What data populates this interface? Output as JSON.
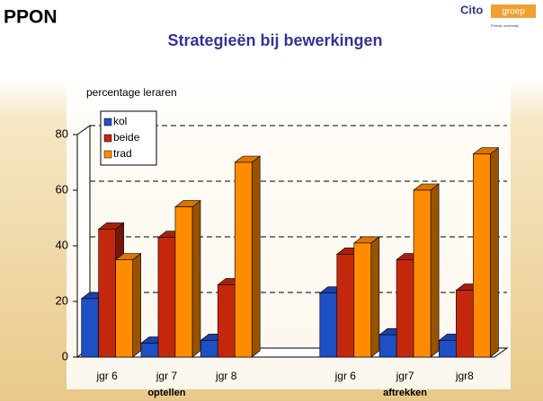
{
  "header": {
    "brand": "PPON",
    "logo": "Cito",
    "logo_tag": "groep",
    "logo_sub": "Primair onderwijs"
  },
  "chart_data": {
    "type": "bar3d",
    "title": "Strategieën bij bewerkingen",
    "ylabel": "percentage leraren",
    "categories": [
      "jgr 6",
      "jgr 7",
      "jgr 8",
      null,
      "jgr 6",
      "jgr7",
      "jgr8"
    ],
    "group_labels": [
      "optellen",
      "aftrekken"
    ],
    "series": [
      {
        "name": "kol",
        "color": "#1f4fc4",
        "values": [
          21,
          5,
          6,
          null,
          23,
          8,
          6
        ]
      },
      {
        "name": "beide",
        "color": "#c4280c",
        "values": [
          46,
          43,
          26,
          null,
          37,
          35,
          24
        ]
      },
      {
        "name": "trad",
        "color": "#ff8c00",
        "values": [
          35,
          54,
          70,
          null,
          41,
          60,
          73
        ]
      }
    ],
    "ylim": [
      0,
      80
    ],
    "yticks": [
      0,
      20,
      40,
      60,
      80
    ],
    "grid": true,
    "legend": "upper left"
  }
}
